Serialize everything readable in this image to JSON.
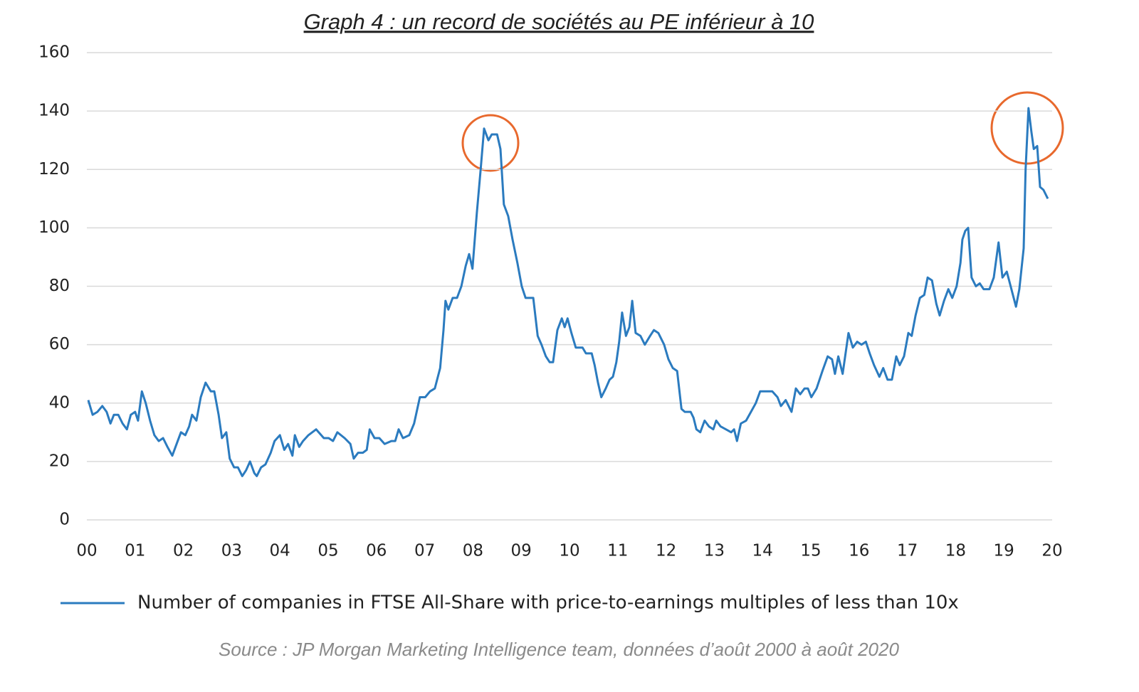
{
  "chart_data": {
    "type": "line",
    "title": "Graph 4 : un record de sociétés au PE inférieur à 10",
    "source": "Source : JP Morgan Marketing Intelligence team, données d’août 2000 à août 2020",
    "xlim": [
      0,
      20
    ],
    "xticks": [
      {
        "value": 0,
        "label": "00"
      },
      {
        "value": 1,
        "label": "01"
      },
      {
        "value": 2,
        "label": "02"
      },
      {
        "value": 3,
        "label": "03"
      },
      {
        "value": 4,
        "label": "04"
      },
      {
        "value": 5,
        "label": "05"
      },
      {
        "value": 6,
        "label": "06"
      },
      {
        "value": 7,
        "label": "07"
      },
      {
        "value": 8,
        "label": "08"
      },
      {
        "value": 9,
        "label": "09"
      },
      {
        "value": 10,
        "label": "10"
      },
      {
        "value": 11,
        "label": "11"
      },
      {
        "value": 12,
        "label": "12"
      },
      {
        "value": 13,
        "label": "13"
      },
      {
        "value": 14,
        "label": "14"
      },
      {
        "value": 15,
        "label": "15"
      },
      {
        "value": 16,
        "label": "16"
      },
      {
        "value": 17,
        "label": "17"
      },
      {
        "value": 18,
        "label": "18"
      },
      {
        "value": 19,
        "label": "19"
      },
      {
        "value": 20,
        "label": "20"
      }
    ],
    "ylim": [
      0,
      160
    ],
    "yticks": [
      0,
      20,
      40,
      60,
      80,
      100,
      120,
      140,
      160
    ],
    "grid": true,
    "x": [
      0.03,
      0.12,
      0.22,
      0.32,
      0.41,
      0.49,
      0.56,
      0.65,
      0.74,
      0.83,
      0.91,
      1.0,
      1.06,
      1.14,
      1.22,
      1.31,
      1.4,
      1.49,
      1.58,
      1.67,
      1.77,
      1.86,
      1.95,
      2.04,
      2.12,
      2.18,
      2.27,
      2.36,
      2.46,
      2.57,
      2.64,
      2.73,
      2.8,
      2.89,
      2.96,
      3.05,
      3.13,
      3.22,
      3.3,
      3.38,
      3.47,
      3.52,
      3.61,
      3.7,
      3.81,
      3.89,
      4.0,
      4.09,
      4.17,
      4.26,
      4.31,
      4.4,
      4.48,
      4.59,
      4.75,
      4.91,
      5.01,
      5.1,
      5.19,
      5.34,
      5.46,
      5.53,
      5.62,
      5.72,
      5.8,
      5.86,
      5.96,
      6.06,
      6.17,
      6.31,
      6.39,
      6.46,
      6.55,
      6.68,
      6.78,
      6.9,
      7.01,
      7.11,
      7.21,
      7.32,
      7.39,
      7.43,
      7.49,
      7.58,
      7.67,
      7.76,
      7.85,
      7.92,
      7.99,
      8.08,
      8.16,
      8.23,
      8.32,
      8.39,
      8.5,
      8.57,
      8.64,
      8.73,
      8.82,
      8.92,
      9.01,
      9.09,
      9.19,
      9.25,
      9.34,
      9.42,
      9.51,
      9.59,
      9.66,
      9.75,
      9.84,
      9.9,
      9.96,
      10.04,
      10.13,
      10.27,
      10.34,
      10.46,
      10.52,
      10.59,
      10.66,
      10.75,
      10.83,
      10.9,
      10.97,
      11.03,
      11.09,
      11.17,
      11.24,
      11.3,
      11.37,
      11.47,
      11.56,
      11.67,
      11.75,
      11.84,
      11.96,
      12.05,
      12.14,
      12.23,
      12.32,
      12.39,
      12.51,
      12.57,
      12.63,
      12.71,
      12.8,
      12.89,
      12.98,
      13.04,
      13.13,
      13.24,
      13.35,
      13.41,
      13.47,
      13.55,
      13.66,
      13.76,
      13.86,
      13.95,
      14.07,
      14.2,
      14.31,
      14.38,
      14.48,
      14.6,
      14.69,
      14.78,
      14.87,
      14.94,
      15.01,
      15.12,
      15.24,
      15.35,
      15.44,
      15.5,
      15.57,
      15.66,
      15.78,
      15.87,
      15.96,
      16.05,
      16.14,
      16.22,
      16.31,
      16.42,
      16.5,
      16.59,
      16.68,
      16.77,
      16.84,
      16.93,
      17.02,
      17.09,
      17.17,
      17.26,
      17.35,
      17.42,
      17.51,
      17.6,
      17.67,
      17.76,
      17.85,
      17.93,
      18.02,
      18.1,
      18.14,
      18.2,
      18.26,
      18.33,
      18.42,
      18.5,
      18.58,
      18.7,
      18.79,
      18.89,
      18.97,
      19.06,
      19.14,
      19.25,
      19.32,
      19.41,
      19.45,
      19.51,
      19.57,
      19.62,
      19.69,
      19.75,
      19.82,
      19.91
    ],
    "series": [
      {
        "name": "Number of companies in FTSE All-Share with price-to-earnings multiples of less than 10x",
        "color": "#2b7bbf",
        "values": [
          41,
          36,
          37,
          39,
          37,
          33,
          36,
          36,
          33,
          31,
          36,
          37,
          34,
          44,
          40,
          34,
          29,
          27,
          28,
          25,
          22,
          26,
          30,
          29,
          32,
          36,
          34,
          42,
          47,
          44,
          44,
          36,
          28,
          30,
          21,
          18,
          18,
          15,
          17,
          20,
          16,
          15,
          18,
          19,
          23,
          27,
          29,
          24,
          26,
          22,
          29,
          25,
          27,
          29,
          31,
          28,
          28,
          27,
          30,
          28,
          26,
          21,
          23,
          23,
          24,
          31,
          28,
          28,
          26,
          27,
          27,
          31,
          28,
          29,
          33,
          42,
          42,
          44,
          45,
          52,
          65,
          75,
          72,
          76,
          76,
          80,
          87,
          91,
          86,
          105,
          120,
          134,
          130,
          132,
          132,
          127,
          108,
          104,
          96,
          88,
          80,
          76,
          76,
          76,
          63,
          60,
          56,
          54,
          54,
          65,
          69,
          66,
          69,
          64,
          59,
          59,
          57,
          57,
          53,
          47,
          42,
          45,
          48,
          49,
          54,
          61,
          71,
          63,
          66,
          75,
          64,
          63,
          60,
          63,
          65,
          64,
          60,
          55,
          52,
          51,
          38,
          37,
          37,
          35,
          31,
          30,
          34,
          32,
          31,
          34,
          32,
          31,
          30,
          31,
          27,
          33,
          34,
          37,
          40,
          44,
          44,
          44,
          42,
          39,
          41,
          37,
          45,
          43,
          45,
          45,
          42,
          45,
          51,
          56,
          55,
          50,
          56,
          50,
          64,
          59,
          61,
          60,
          61,
          57,
          53,
          49,
          52,
          48,
          48,
          56,
          53,
          56,
          64,
          63,
          70,
          76,
          77,
          83,
          82,
          74,
          70,
          75,
          79,
          76,
          80,
          88,
          96,
          99,
          100,
          83,
          80,
          81,
          79,
          79,
          83,
          95,
          83,
          85,
          80,
          73,
          79,
          93,
          120,
          141,
          133,
          127,
          128,
          114,
          113,
          110
        ]
      }
    ]
  }
}
